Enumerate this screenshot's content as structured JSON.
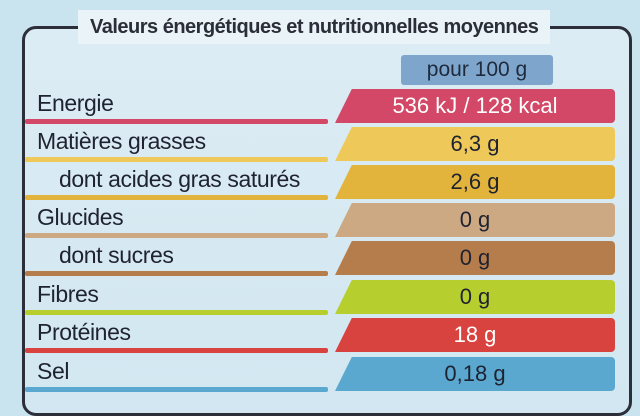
{
  "title": "Valeurs énergétiques et nutritionnelles moyennes",
  "per_label": "pour 100 g",
  "rows": [
    {
      "label": "Energie",
      "value": "536 kJ / 128 kcal",
      "color": "#d24866",
      "sub": false,
      "value_color": "#ffffff"
    },
    {
      "label": "Matières grasses",
      "value": "6,3 g",
      "color": "#eec95a",
      "sub": false,
      "value_color": "#1f2230"
    },
    {
      "label": "dont acides gras saturés",
      "value": "2,6 g",
      "color": "#e3b43c",
      "sub": true,
      "value_color": "#1f2230"
    },
    {
      "label": "Glucides",
      "value": "0 g",
      "color": "#cda983",
      "sub": false,
      "value_color": "#1f2230"
    },
    {
      "label": "dont sucres",
      "value": "0 g",
      "color": "#b57d4b",
      "sub": true,
      "value_color": "#1f2230"
    },
    {
      "label": "Fibres",
      "value": "0 g",
      "color": "#b7cf2e",
      "sub": false,
      "value_color": "#1f2230"
    },
    {
      "label": "Protéines",
      "value": "18 g",
      "color": "#d9433f",
      "sub": false,
      "value_color": "#ffffff"
    },
    {
      "label": "Sel",
      "value": "0,18 g",
      "color": "#5aa8cf",
      "sub": false,
      "value_color": "#1f2230"
    }
  ]
}
